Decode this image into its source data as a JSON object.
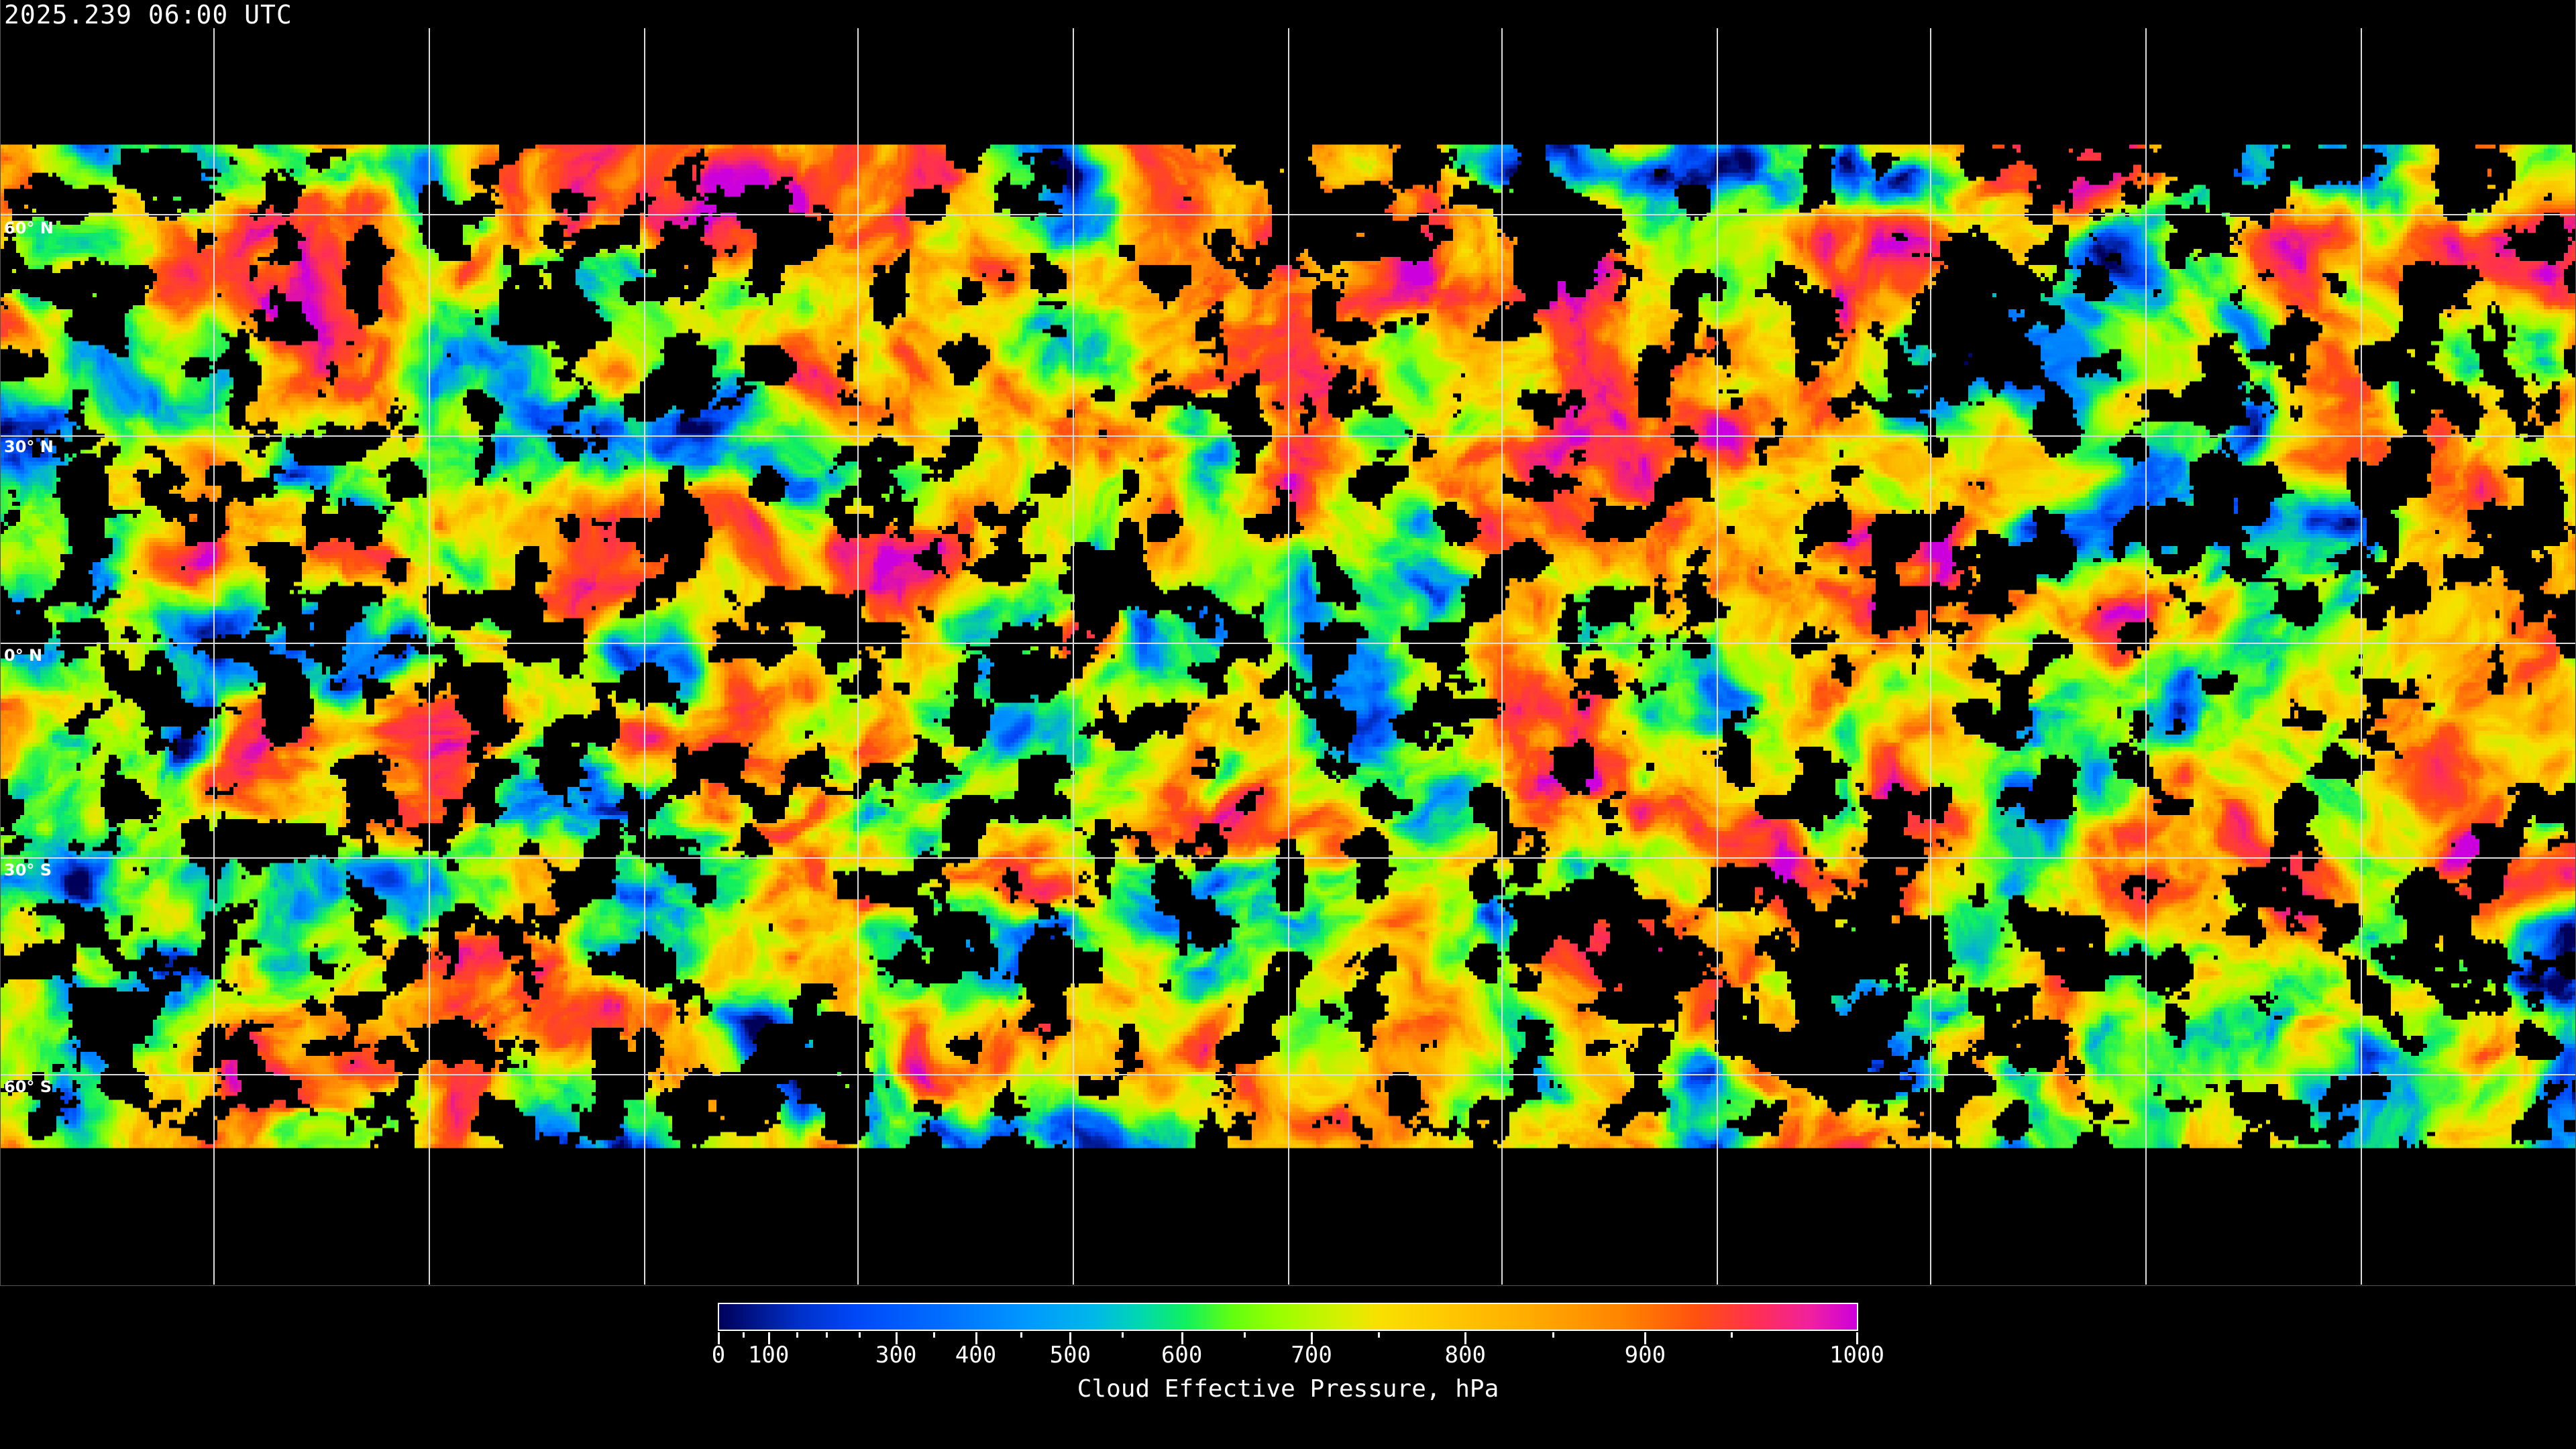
{
  "header": {
    "timestamp": "2025.239 06:00 UTC"
  },
  "map": {
    "projection": "equirectangular",
    "latitude_labels": [
      "60° N",
      "30° N",
      "0° N",
      "30° S",
      "60° S"
    ],
    "grid": true,
    "coastlines_color": "#ffffff",
    "no_data_color": "#000000"
  },
  "colorbar": {
    "title": "Cloud Effective Pressure, hPa",
    "ticks": [
      {
        "value": 0,
        "label": "0",
        "pos": 0.0
      },
      {
        "value": 100,
        "label": "100",
        "pos": 0.044
      },
      {
        "value": 300,
        "label": "300",
        "pos": 0.156
      },
      {
        "value": 400,
        "label": "400",
        "pos": 0.226
      },
      {
        "value": 500,
        "label": "500",
        "pos": 0.309
      },
      {
        "value": 600,
        "label": "600",
        "pos": 0.407
      },
      {
        "value": 700,
        "label": "700",
        "pos": 0.521
      },
      {
        "value": 800,
        "label": "800",
        "pos": 0.656
      },
      {
        "value": 900,
        "label": "900",
        "pos": 0.814
      },
      {
        "value": 1000,
        "label": "1000",
        "pos": 1.0
      }
    ],
    "minor_ticks": [
      0.022,
      0.069,
      0.095,
      0.124,
      0.189,
      0.266,
      0.355,
      0.462,
      0.58,
      0.733,
      0.89
    ],
    "range": [
      0,
      1000
    ],
    "colors": [
      "#00005a",
      "#0048f8",
      "#0098ff",
      "#10f060",
      "#98ff00",
      "#f8e000",
      "#ffa800",
      "#ff5010",
      "#ff3050",
      "#cc00dd"
    ]
  }
}
